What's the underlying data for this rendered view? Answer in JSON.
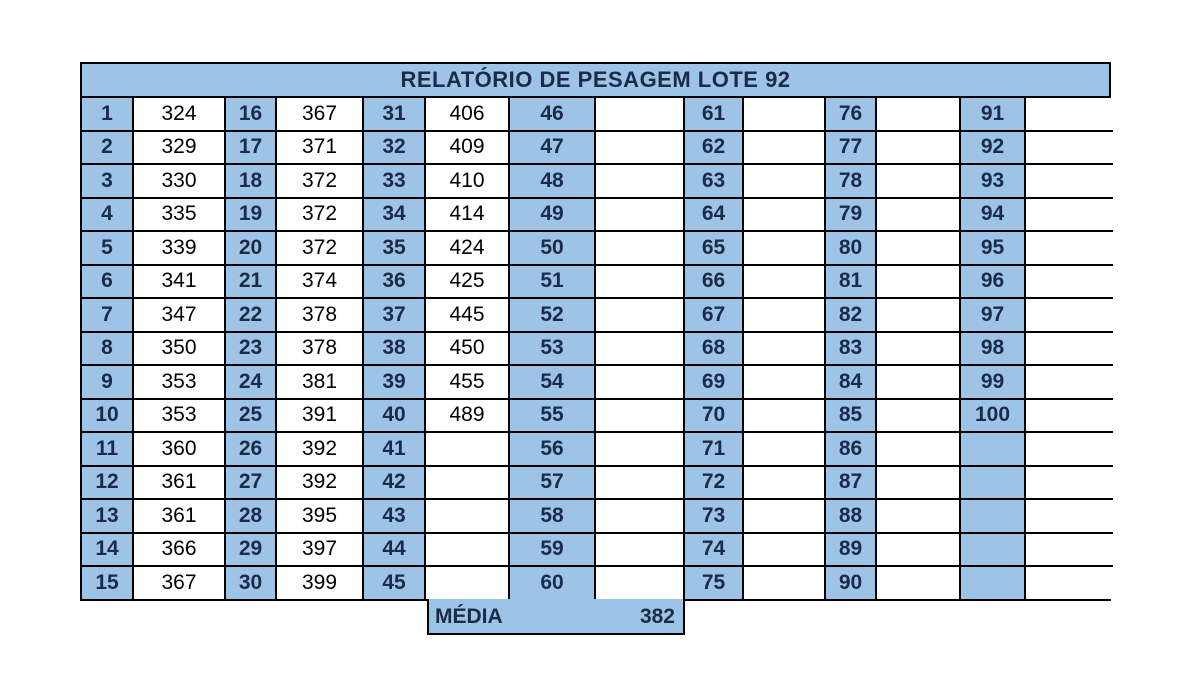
{
  "title": "RELATÓRIO DE PESAGEM LOTE  92",
  "columns": [
    {
      "labels": [
        "1",
        "2",
        "3",
        "4",
        "5",
        "6",
        "7",
        "8",
        "9",
        "10",
        "11",
        "12",
        "13",
        "14",
        "15"
      ],
      "values": [
        "324",
        "329",
        "330",
        "335",
        "339",
        "341",
        "347",
        "350",
        "353",
        "353",
        "360",
        "361",
        "361",
        "366",
        "367"
      ]
    },
    {
      "labels": [
        "16",
        "17",
        "18",
        "19",
        "20",
        "21",
        "22",
        "23",
        "24",
        "25",
        "26",
        "27",
        "28",
        "29",
        "30"
      ],
      "values": [
        "367",
        "371",
        "372",
        "372",
        "372",
        "374",
        "378",
        "378",
        "381",
        "391",
        "392",
        "392",
        "395",
        "397",
        "399"
      ]
    },
    {
      "labels": [
        "31",
        "32",
        "33",
        "34",
        "35",
        "36",
        "37",
        "38",
        "39",
        "40",
        "41",
        "42",
        "43",
        "44",
        "45"
      ],
      "values": [
        "406",
        "409",
        "410",
        "414",
        "424",
        "425",
        "445",
        "450",
        "455",
        "489",
        "",
        "",
        "",
        "",
        ""
      ]
    },
    {
      "labels": [
        "46",
        "47",
        "48",
        "49",
        "50",
        "51",
        "52",
        "53",
        "54",
        "55",
        "56",
        "57",
        "58",
        "59",
        "60"
      ],
      "values": [
        "",
        "",
        "",
        "",
        "",
        "",
        "",
        "",
        "",
        "",
        "",
        "",
        "",
        "",
        ""
      ]
    },
    {
      "labels": [
        "61",
        "62",
        "63",
        "64",
        "65",
        "66",
        "67",
        "68",
        "69",
        "70",
        "71",
        "72",
        "73",
        "74",
        "75"
      ],
      "values": [
        "",
        "",
        "",
        "",
        "",
        "",
        "",
        "",
        "",
        "",
        "",
        "",
        "",
        "",
        ""
      ]
    },
    {
      "labels": [
        "76",
        "77",
        "78",
        "79",
        "80",
        "81",
        "82",
        "83",
        "84",
        "85",
        "86",
        "87",
        "88",
        "89",
        "90"
      ],
      "values": [
        "",
        "",
        "",
        "",
        "",
        "",
        "",
        "",
        "",
        "",
        "",
        "",
        "",
        "",
        ""
      ]
    },
    {
      "labels": [
        "91",
        "92",
        "93",
        "94",
        "95",
        "96",
        "97",
        "98",
        "99",
        "100",
        "",
        "",
        "",
        "",
        ""
      ],
      "values": [
        "",
        "",
        "",
        "",
        "",
        "",
        "",
        "",
        "",
        "",
        "",
        "",
        "",
        "",
        ""
      ]
    }
  ],
  "media": {
    "label": "MÉDIA",
    "value": "382"
  }
}
